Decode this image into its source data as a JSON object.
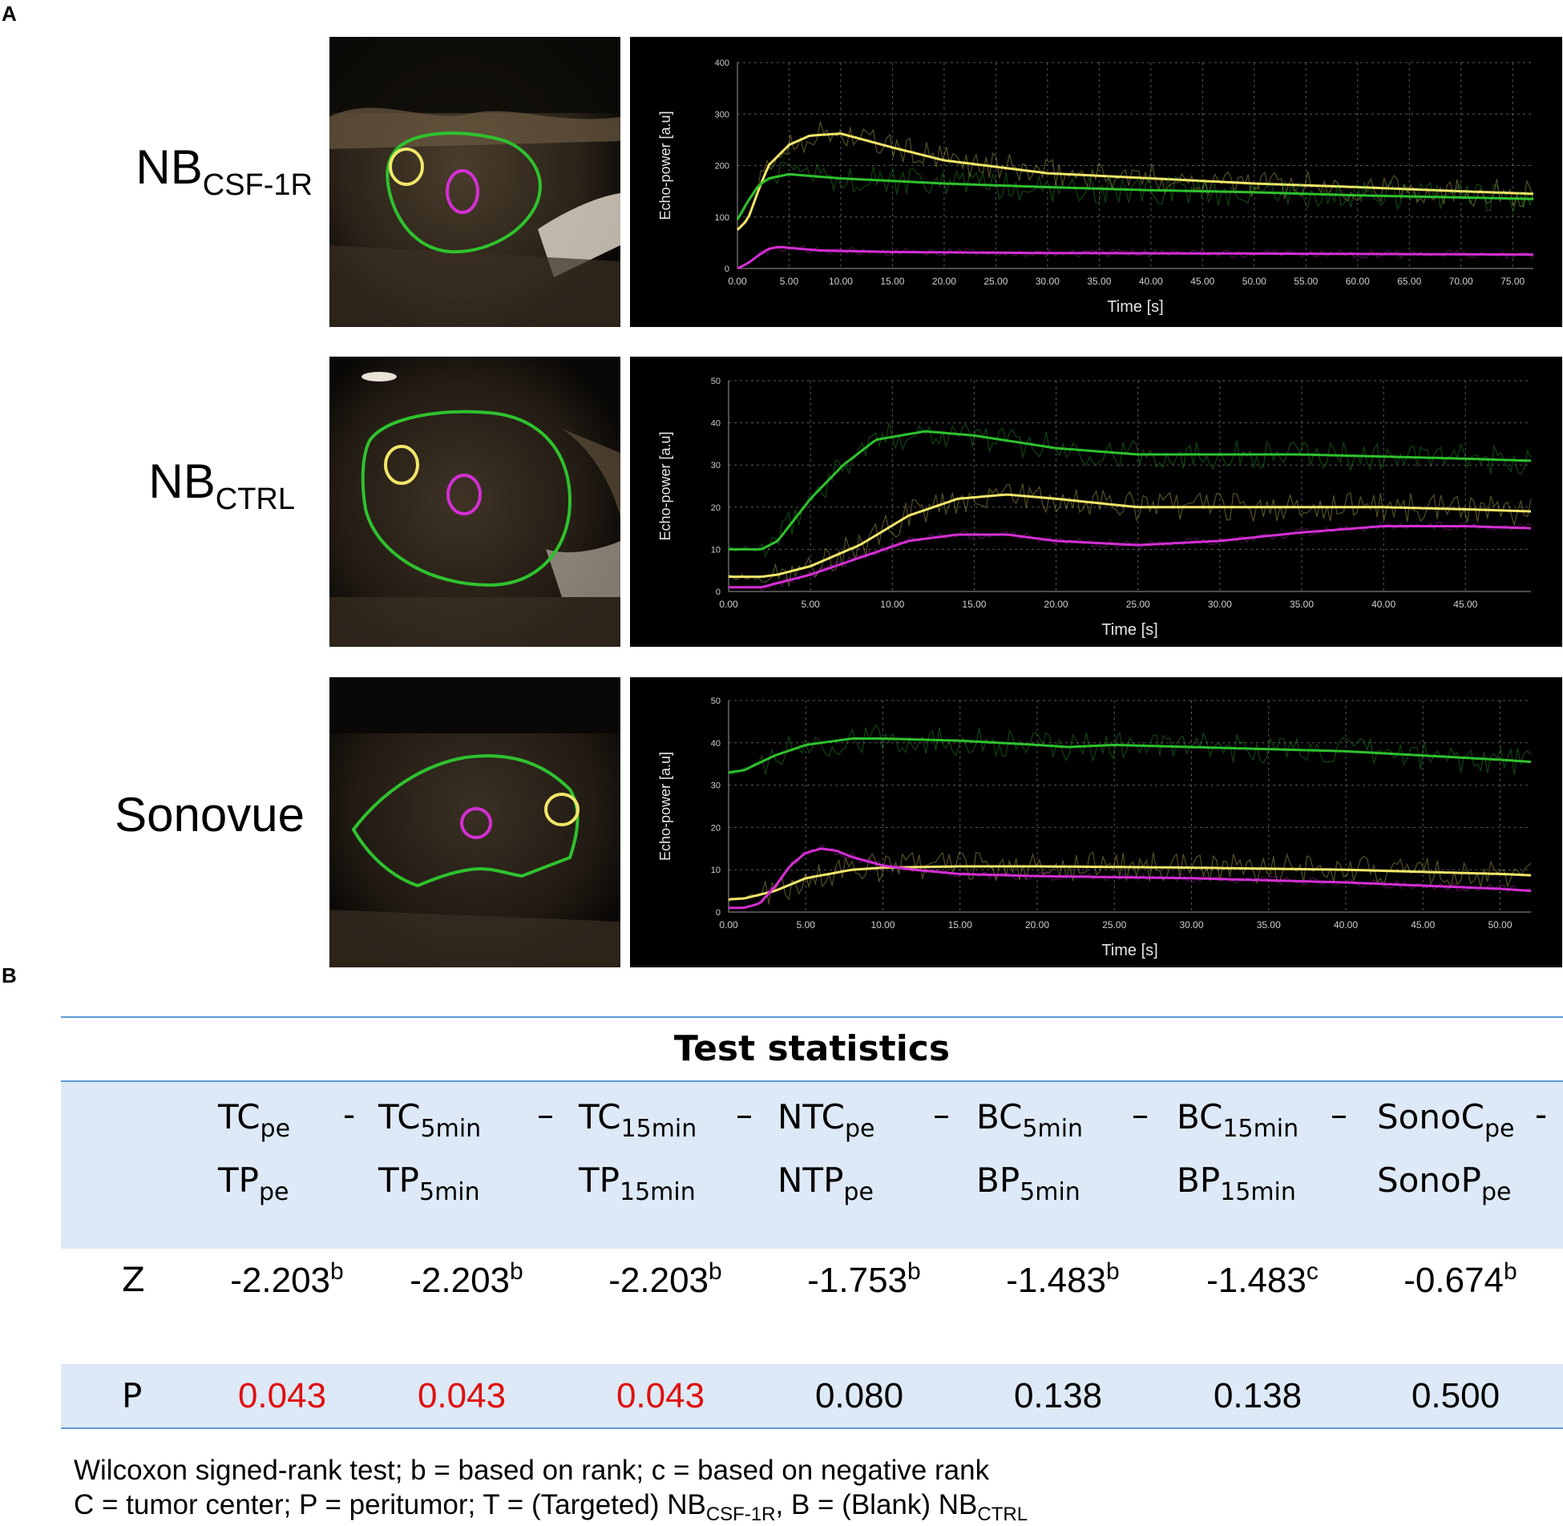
{
  "panels": {
    "a": "A",
    "b": "B"
  },
  "rows": [
    {
      "label_main": "NB",
      "label_sub": "CSF-1R",
      "plot": {
        "ylabel": "Echo-power [a.u]",
        "xlabel": "Time [s]",
        "yticks": [
          "0",
          "100",
          "200",
          "300",
          "400"
        ],
        "xticks": [
          "0.00",
          "5.00",
          "10.00",
          "15.00",
          "20.00",
          "25.00",
          "30.00",
          "35.00",
          "40.00",
          "45.00",
          "50.00",
          "55.00",
          "60.00",
          "65.00",
          "70.00",
          "75.00"
        ]
      }
    },
    {
      "label_main": "NB",
      "label_sub": "CTRL",
      "plot": {
        "ylabel": "Echo-power [a.u]",
        "xlabel": "Time [s]",
        "yticks": [
          "0",
          "10",
          "20",
          "30",
          "40",
          "50"
        ],
        "xticks": [
          "0.00",
          "5.00",
          "10.00",
          "15.00",
          "20.00",
          "25.00",
          "30.00",
          "35.00",
          "40.00",
          "45.00"
        ]
      }
    },
    {
      "label_main": "Sonovue",
      "label_sub": "",
      "plot": {
        "ylabel": "Echo-power [a.u]",
        "xlabel": "Time [s]",
        "yticks": [
          "0",
          "10",
          "20",
          "30",
          "40",
          "50"
        ],
        "xticks": [
          "0.00",
          "5.00",
          "10.00",
          "15.00",
          "20.00",
          "25.00",
          "30.00",
          "35.00",
          "40.00",
          "45.00",
          "50.00"
        ]
      }
    }
  ],
  "chart_data": [
    {
      "type": "line",
      "xlim": [
        0,
        77
      ],
      "ylim": [
        0,
        400
      ],
      "series_colors": {
        "yellow": "#f2e66a",
        "green": "#2ec22e",
        "magenta": "#d42fd4"
      },
      "series": [
        {
          "color": "yellow",
          "x": [
            0,
            1,
            2,
            3,
            5,
            7,
            10,
            15,
            20,
            30,
            40,
            50,
            60,
            70,
            77
          ],
          "values": [
            75,
            95,
            150,
            200,
            240,
            258,
            262,
            235,
            210,
            185,
            175,
            165,
            158,
            150,
            145
          ]
        },
        {
          "color": "green",
          "x": [
            0,
            1,
            2,
            3,
            5,
            10,
            20,
            30,
            40,
            50,
            60,
            70,
            77
          ],
          "values": [
            95,
            130,
            160,
            175,
            183,
            175,
            165,
            158,
            152,
            148,
            142,
            138,
            135
          ]
        },
        {
          "color": "magenta",
          "x": [
            0,
            1,
            2,
            3,
            4,
            5,
            8,
            15,
            30,
            50,
            77
          ],
          "values": [
            0,
            10,
            25,
            38,
            42,
            40,
            35,
            32,
            30,
            29,
            27
          ]
        }
      ]
    },
    {
      "type": "line",
      "xlim": [
        0,
        49
      ],
      "ylim": [
        0,
        50
      ],
      "series_colors": {
        "yellow": "#f2e66a",
        "green": "#2ec22e",
        "magenta": "#d42fd4"
      },
      "series": [
        {
          "color": "green",
          "x": [
            0,
            2,
            3,
            5,
            7,
            9,
            12,
            15,
            20,
            25,
            30,
            35,
            40,
            45,
            49
          ],
          "values": [
            10,
            10,
            12,
            22,
            30,
            36,
            38,
            37,
            34,
            32.5,
            32.5,
            32.5,
            32,
            31.5,
            31
          ]
        },
        {
          "color": "yellow",
          "x": [
            0,
            2,
            3,
            5,
            8,
            11,
            14,
            17,
            20,
            25,
            30,
            35,
            40,
            45,
            49
          ],
          "values": [
            3.5,
            3.5,
            4,
            6,
            11,
            18,
            22,
            23,
            22,
            20,
            20,
            20,
            20,
            19.5,
            19
          ]
        },
        {
          "color": "magenta",
          "x": [
            0,
            2,
            3,
            5,
            8,
            11,
            14,
            17,
            20,
            25,
            30,
            35,
            40,
            45,
            49
          ],
          "values": [
            1,
            1,
            2,
            4,
            8,
            12,
            13.5,
            13.5,
            12,
            11,
            12,
            14,
            15.5,
            15.5,
            15
          ]
        }
      ]
    },
    {
      "type": "line",
      "xlim": [
        0,
        52
      ],
      "ylim": [
        0,
        50
      ],
      "series_colors": {
        "yellow": "#f2e66a",
        "green": "#2ec22e",
        "magenta": "#d42fd4"
      },
      "series": [
        {
          "color": "green",
          "x": [
            0,
            1,
            3,
            5,
            8,
            10,
            15,
            20,
            22,
            25,
            30,
            40,
            50,
            52
          ],
          "values": [
            33,
            33.5,
            37,
            39.5,
            41,
            41,
            40.5,
            39.5,
            39,
            39.5,
            39,
            38,
            36,
            35.5
          ]
        },
        {
          "color": "yellow",
          "x": [
            0,
            1,
            3,
            5,
            8,
            10,
            15,
            20,
            30,
            40,
            50,
            52
          ],
          "values": [
            3,
            3.2,
            5,
            8,
            10,
            10.5,
            10.8,
            10.8,
            10.5,
            10,
            9,
            8.7
          ]
        },
        {
          "color": "magenta",
          "x": [
            0,
            1,
            2,
            3,
            4,
            5,
            6,
            7,
            8,
            10,
            12,
            15,
            20,
            30,
            40,
            50,
            52
          ],
          "values": [
            1,
            1,
            2,
            6,
            11,
            14,
            15,
            14.5,
            13,
            11,
            10,
            9,
            8.5,
            8,
            7,
            5.5,
            5
          ]
        }
      ]
    }
  ],
  "table": {
    "title": "Test statistics",
    "columns": [
      {
        "top": "TC",
        "top_sub": "pe",
        "dash": "-",
        "bottom": "TP",
        "bottom_sub": "pe"
      },
      {
        "top": "TC",
        "top_sub": "5min",
        "dash": "–",
        "bottom": "TP",
        "bottom_sub": "5min"
      },
      {
        "top": "TC",
        "top_sub": "15min",
        "dash": "–",
        "bottom": "TP",
        "bottom_sub": "15min"
      },
      {
        "top": "NTC",
        "top_sub": "pe",
        "dash": "–",
        "bottom": "NTP",
        "bottom_sub": "pe"
      },
      {
        "top": "BC",
        "top_sub": "5min",
        "dash": "–",
        "bottom": "BP",
        "bottom_sub": "5min"
      },
      {
        "top": "BC",
        "top_sub": "15min",
        "dash": "–",
        "bottom": "BP",
        "bottom_sub": "15min"
      },
      {
        "top": "SonoC",
        "top_sub": "pe",
        "dash": "-",
        "bottom": "SonoP",
        "bottom_sub": "pe"
      }
    ],
    "z_label": "Z",
    "z_values": [
      {
        "value": "-2.203",
        "sup": "b"
      },
      {
        "value": "-2.203",
        "sup": "b"
      },
      {
        "value": "-2.203",
        "sup": "b"
      },
      {
        "value": "-1.753",
        "sup": "b"
      },
      {
        "value": "-1.483",
        "sup": "b"
      },
      {
        "value": "-1.483",
        "sup": "c"
      },
      {
        "value": "-0.674",
        "sup": "b"
      }
    ],
    "p_label": "P",
    "p_values": [
      "0.043",
      "0.043",
      "0.043",
      "0.080",
      "0.138",
      "0.138",
      "0.500"
    ],
    "significant_color": "#e01010"
  },
  "footnote": {
    "line1": "Wilcoxon signed-rank test; b = based on rank; c =  based on negative rank",
    "line2_a": "C = tumor center; P = peritumor; T = (Targeted) NB",
    "line2_sub1": "CSF-1R",
    "line2_b": ", B = (Blank) NB",
    "line2_sub2": "CTRL"
  }
}
